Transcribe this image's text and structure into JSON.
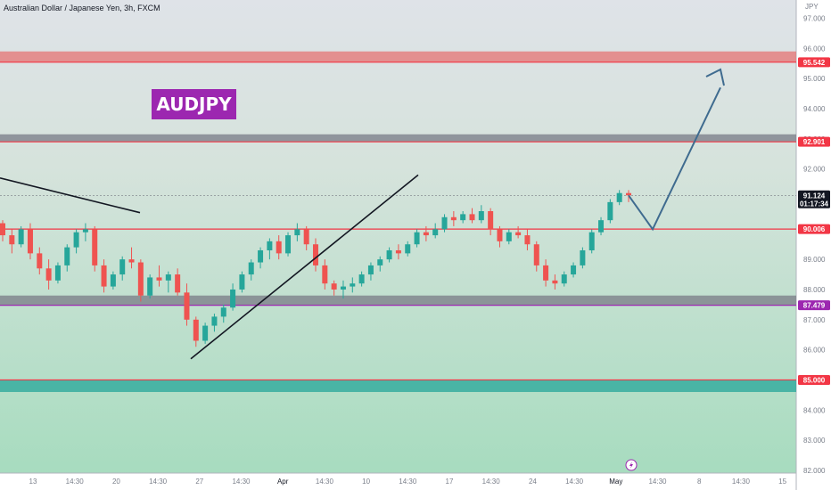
{
  "header": {
    "symbol_title": "Australian Dollar / Japanese Yen, 3h, FXCM",
    "currency_label": "JPY"
  },
  "annotation": {
    "badge_text": "AUDJPY",
    "badge_color": "#9c27b0",
    "bolt_icon": "lightning-bolt-icon"
  },
  "chart_data": {
    "type": "candlestick",
    "symbol": "AUDJPY",
    "ylim": [
      82.0,
      97.5
    ],
    "y_ticks": [
      "97.000",
      "96.000",
      "95.000",
      "94.000",
      "93.000",
      "92.000",
      "91.000",
      "90.000",
      "89.000",
      "88.000",
      "87.000",
      "86.000",
      "85.000",
      "84.000",
      "83.000",
      "82.000"
    ],
    "y_tick_values": [
      97,
      96,
      95,
      94,
      93,
      92,
      91,
      90,
      89,
      88,
      87,
      86,
      85,
      84,
      83,
      82
    ],
    "x_ticks": [
      "13",
      "14:30",
      "20",
      "14:30",
      "27",
      "14:30",
      "Apr",
      "14:30",
      "10",
      "14:30",
      "17",
      "14:30",
      "24",
      "14:30",
      "May",
      "14:30",
      "8",
      "14:30",
      "15"
    ],
    "price_tags": [
      {
        "label": "95.542",
        "value": 95.542,
        "color": "#f23645"
      },
      {
        "label": "92.901",
        "value": 92.901,
        "color": "#f23645"
      },
      {
        "label": "91.124",
        "sub_label": "01:17:34",
        "value": 91.124,
        "color": "#131722"
      },
      {
        "label": "90.006",
        "value": 90.006,
        "color": "#f23645"
      },
      {
        "label": "87.479",
        "value": 87.479,
        "color": "#9c27b0"
      },
      {
        "label": "85.000",
        "value": 85.0,
        "color": "#f23645"
      }
    ],
    "zones": [
      {
        "name": "resistance-zone-top",
        "from": 95.542,
        "to": 95.9,
        "color": "#e57373"
      },
      {
        "name": "resistance-zone-92",
        "from": 92.901,
        "to": 93.15,
        "color": "#787b86"
      },
      {
        "name": "support-zone-87",
        "from": 87.479,
        "to": 87.8,
        "color": "#787b86"
      },
      {
        "name": "support-zone-85",
        "from": 84.6,
        "to": 85.0,
        "color": "#26a69a"
      }
    ],
    "candles": [
      [
        90.2,
        90.3,
        89.6,
        89.8
      ],
      [
        89.8,
        90.0,
        89.2,
        89.5
      ],
      [
        89.5,
        90.1,
        89.4,
        90.0
      ],
      [
        90.0,
        90.2,
        89.0,
        89.2
      ],
      [
        89.2,
        89.4,
        88.5,
        88.7
      ],
      [
        88.7,
        89.0,
        88.0,
        88.3
      ],
      [
        88.3,
        88.9,
        88.2,
        88.8
      ],
      [
        88.8,
        89.5,
        88.6,
        89.4
      ],
      [
        89.4,
        90.0,
        89.2,
        89.9
      ],
      [
        89.9,
        90.2,
        89.6,
        90.0
      ],
      [
        90.0,
        90.1,
        88.6,
        88.8
      ],
      [
        88.8,
        89.0,
        87.9,
        88.1
      ],
      [
        88.1,
        88.6,
        88.0,
        88.5
      ],
      [
        88.5,
        89.1,
        88.3,
        89.0
      ],
      [
        89.0,
        89.4,
        88.7,
        88.9
      ],
      [
        88.9,
        89.0,
        87.6,
        87.8
      ],
      [
        87.8,
        88.5,
        87.7,
        88.4
      ],
      [
        88.4,
        88.8,
        88.1,
        88.3
      ],
      [
        88.3,
        88.6,
        87.9,
        88.5
      ],
      [
        88.5,
        88.7,
        87.8,
        87.9
      ],
      [
        87.9,
        88.2,
        86.8,
        87.0
      ],
      [
        87.0,
        87.1,
        86.1,
        86.3
      ],
      [
        86.3,
        86.9,
        86.2,
        86.8
      ],
      [
        86.8,
        87.2,
        86.6,
        87.1
      ],
      [
        87.1,
        87.5,
        86.9,
        87.4
      ],
      [
        87.4,
        88.2,
        87.3,
        88.0
      ],
      [
        88.0,
        88.6,
        87.9,
        88.5
      ],
      [
        88.5,
        89.0,
        88.3,
        88.9
      ],
      [
        88.9,
        89.4,
        88.7,
        89.3
      ],
      [
        89.3,
        89.7,
        89.0,
        89.6
      ],
      [
        89.6,
        89.8,
        89.0,
        89.2
      ],
      [
        89.2,
        89.9,
        89.1,
        89.8
      ],
      [
        89.8,
        90.2,
        89.6,
        90.0
      ],
      [
        90.0,
        90.1,
        89.3,
        89.5
      ],
      [
        89.5,
        89.7,
        88.6,
        88.8
      ],
      [
        88.8,
        89.0,
        88.0,
        88.2
      ],
      [
        88.2,
        88.3,
        87.8,
        88.0
      ],
      [
        88.0,
        88.3,
        87.7,
        88.1
      ],
      [
        88.1,
        88.4,
        87.9,
        88.2
      ],
      [
        88.2,
        88.6,
        88.1,
        88.5
      ],
      [
        88.5,
        88.9,
        88.3,
        88.8
      ],
      [
        88.8,
        89.1,
        88.6,
        89.0
      ],
      [
        89.0,
        89.4,
        88.9,
        89.3
      ],
      [
        89.3,
        89.5,
        89.0,
        89.2
      ],
      [
        89.2,
        89.6,
        89.1,
        89.5
      ],
      [
        89.5,
        90.0,
        89.4,
        89.9
      ],
      [
        89.9,
        90.1,
        89.6,
        89.8
      ],
      [
        89.8,
        90.2,
        89.7,
        90.0
      ],
      [
        90.0,
        90.5,
        89.9,
        90.4
      ],
      [
        90.4,
        90.6,
        90.1,
        90.3
      ],
      [
        90.3,
        90.6,
        90.2,
        90.5
      ],
      [
        90.5,
        90.7,
        90.2,
        90.3
      ],
      [
        90.3,
        90.8,
        90.2,
        90.6
      ],
      [
        90.6,
        90.7,
        89.8,
        90.0
      ],
      [
        90.0,
        90.1,
        89.4,
        89.6
      ],
      [
        89.6,
        90.0,
        89.5,
        89.9
      ],
      [
        89.9,
        90.1,
        89.7,
        89.8
      ],
      [
        89.8,
        90.0,
        89.3,
        89.5
      ],
      [
        89.5,
        89.6,
        88.6,
        88.8
      ],
      [
        88.8,
        89.0,
        88.1,
        88.3
      ],
      [
        88.3,
        88.5,
        88.0,
        88.2
      ],
      [
        88.2,
        88.6,
        88.1,
        88.5
      ],
      [
        88.5,
        88.9,
        88.4,
        88.8
      ],
      [
        88.8,
        89.4,
        88.7,
        89.3
      ],
      [
        89.3,
        90.0,
        89.2,
        89.9
      ],
      [
        89.9,
        90.4,
        89.8,
        90.3
      ],
      [
        90.3,
        91.0,
        90.2,
        90.9
      ],
      [
        90.9,
        91.3,
        90.8,
        91.2
      ],
      [
        91.2,
        91.3,
        90.9,
        91.124
      ]
    ],
    "drawings": {
      "downtrend_line": {
        "x1": 0,
        "y1": 91.7,
        "x2": 157,
        "y2": 90.55
      },
      "uptrend_line": {
        "x1": 214,
        "y1": 85.7,
        "x2": 469,
        "y2": 91.8
      },
      "projection_arrow": {
        "points": [
          [
            705,
            91.124
          ],
          [
            732,
            90.0
          ],
          [
            808,
            94.7
          ]
        ],
        "head": [
          808,
          95.3
        ]
      }
    }
  }
}
